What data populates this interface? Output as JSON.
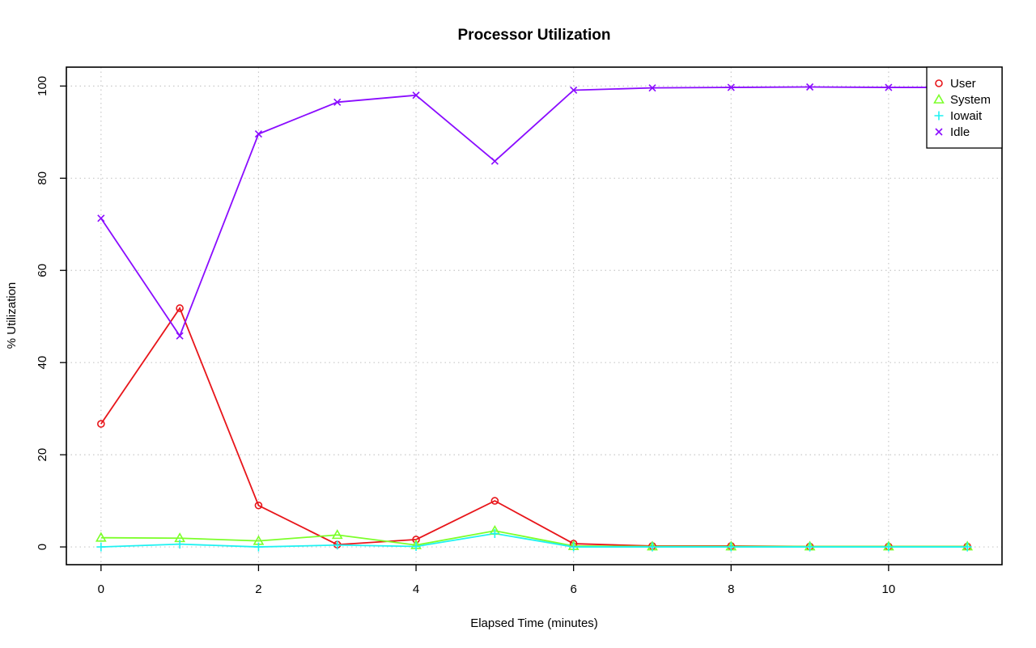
{
  "chart_data": {
    "type": "line",
    "title": "Processor Utilization",
    "xlabel": "Elapsed Time (minutes)",
    "ylabel": "% Utilization",
    "xlim": [
      -0.44,
      11.44
    ],
    "ylim": [
      -3.85,
      104.1
    ],
    "x_ticks": [
      0,
      2,
      4,
      6,
      8,
      10
    ],
    "y_ticks": [
      0,
      20,
      40,
      60,
      80,
      100
    ],
    "grid": true,
    "legend_position": "top-right",
    "x": [
      0,
      1,
      2,
      3,
      4,
      5,
      6,
      7,
      8,
      9,
      10,
      11
    ],
    "series": [
      {
        "name": "User",
        "color": "#e8151a",
        "marker": "circle",
        "values": [
          26.7,
          51.8,
          9.0,
          0.5,
          1.6,
          10.0,
          0.7,
          0.2,
          0.2,
          0.1,
          0.1,
          0.1
        ]
      },
      {
        "name": "System",
        "color": "#7cff2a",
        "marker": "triangle",
        "values": [
          2.0,
          1.9,
          1.3,
          2.6,
          0.4,
          3.5,
          0.2,
          0.1,
          0.1,
          0.1,
          0.1,
          0.1
        ]
      },
      {
        "name": "Iowait",
        "color": "#1ef2f2",
        "marker": "plus",
        "values": [
          0.0,
          0.6,
          0.0,
          0.4,
          0.1,
          2.9,
          0.0,
          0.0,
          0.0,
          0.0,
          0.0,
          0.0
        ]
      },
      {
        "name": "Idle",
        "color": "#8a0cff",
        "marker": "cross",
        "values": [
          71.3,
          45.8,
          89.6,
          96.5,
          98.0,
          83.7,
          99.1,
          99.6,
          99.7,
          99.8,
          99.7,
          99.7
        ]
      }
    ]
  }
}
